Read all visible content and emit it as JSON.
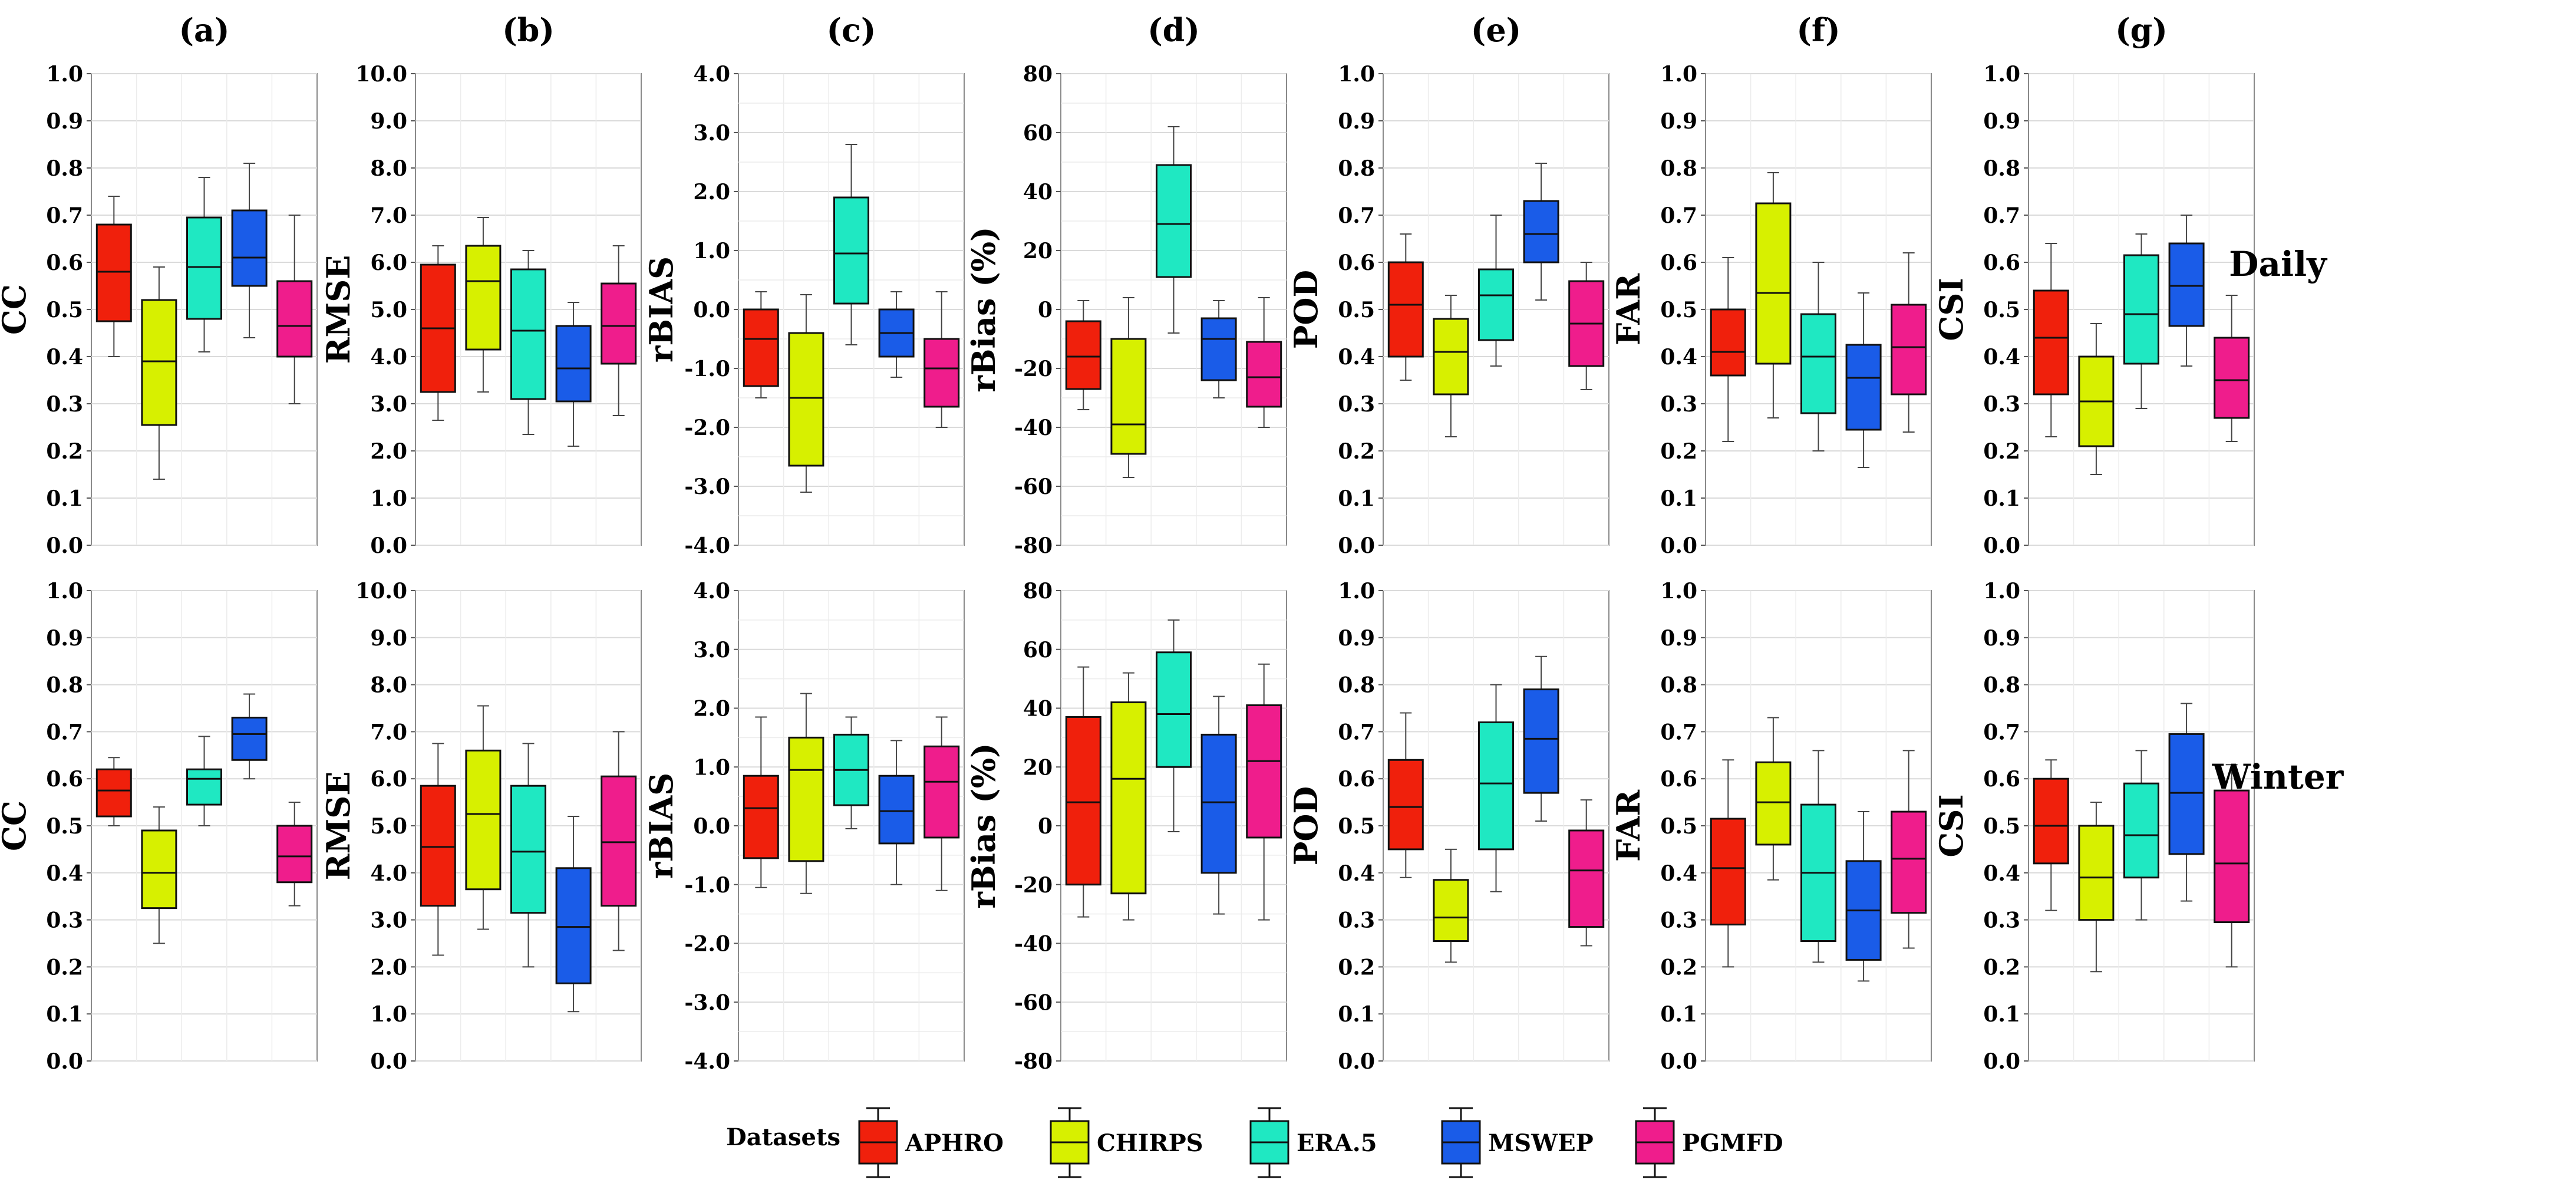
{
  "figure": {
    "row_labels": [
      "Daily",
      "Winter"
    ],
    "legend_title": "Datasets",
    "datasets": [
      "APHRO",
      "CHIRPS",
      "ERA.5",
      "MSWEP",
      "PGMFD"
    ],
    "colors": {
      "APHRO": "#f0200c",
      "CHIRPS": "#d7f000",
      "ERA.5": "#1fe8c2",
      "MSWEP": "#1a5ce8",
      "PGMFD": "#ef1d8c"
    }
  },
  "chart_data": [
    {
      "type": "box",
      "panel": "(a)",
      "row": "Daily",
      "ylabel": "CC",
      "ylim": [
        0,
        1
      ],
      "yticks": [
        "0.0",
        "0.1",
        "0.2",
        "0.3",
        "0.4",
        "0.5",
        "0.6",
        "0.7",
        "0.8",
        "0.9",
        "1.0"
      ],
      "boxes": [
        {
          "dataset": "APHRO",
          "min": 0.4,
          "q1": 0.475,
          "median": 0.58,
          "q3": 0.68,
          "max": 0.74
        },
        {
          "dataset": "CHIRPS",
          "min": 0.14,
          "q1": 0.255,
          "median": 0.39,
          "q3": 0.52,
          "max": 0.59
        },
        {
          "dataset": "ERA.5",
          "min": 0.41,
          "q1": 0.48,
          "median": 0.59,
          "q3": 0.695,
          "max": 0.78
        },
        {
          "dataset": "MSWEP",
          "min": 0.44,
          "q1": 0.55,
          "median": 0.61,
          "q3": 0.71,
          "max": 0.81
        },
        {
          "dataset": "PGMFD",
          "min": 0.3,
          "q1": 0.4,
          "median": 0.465,
          "q3": 0.56,
          "max": 0.7
        }
      ]
    },
    {
      "type": "box",
      "panel": "(b)",
      "row": "Daily",
      "ylabel": "RMSE",
      "ylim": [
        0,
        10
      ],
      "yticks": [
        "0.0",
        "1.0",
        "2.0",
        "3.0",
        "4.0",
        "5.0",
        "6.0",
        "7.0",
        "8.0",
        "9.0",
        "10.0"
      ],
      "boxes": [
        {
          "dataset": "APHRO",
          "min": 2.65,
          "q1": 3.25,
          "median": 4.6,
          "q3": 5.95,
          "max": 6.35
        },
        {
          "dataset": "CHIRPS",
          "min": 3.25,
          "q1": 4.15,
          "median": 5.6,
          "q3": 6.35,
          "max": 6.95
        },
        {
          "dataset": "ERA.5",
          "min": 2.35,
          "q1": 3.1,
          "median": 4.55,
          "q3": 5.85,
          "max": 6.25
        },
        {
          "dataset": "MSWEP",
          "min": 2.1,
          "q1": 3.05,
          "median": 3.75,
          "q3": 4.65,
          "max": 5.15
        },
        {
          "dataset": "PGMFD",
          "min": 2.75,
          "q1": 3.85,
          "median": 4.65,
          "q3": 5.55,
          "max": 6.35
        }
      ]
    },
    {
      "type": "box",
      "panel": "(c)",
      "row": "Daily",
      "ylabel": "rBIAS",
      "ylim": [
        -4,
        4
      ],
      "yticks": [
        "-4.0",
        "-3.0",
        "-2.0",
        "-1.0",
        "0.0",
        "1.0",
        "2.0",
        "3.0",
        "4.0"
      ],
      "boxes": [
        {
          "dataset": "APHRO",
          "min": -1.5,
          "q1": -1.3,
          "median": -0.5,
          "q3": 0.0,
          "max": 0.3
        },
        {
          "dataset": "CHIRPS",
          "min": -3.1,
          "q1": -2.65,
          "median": -1.5,
          "q3": -0.4,
          "max": 0.25
        },
        {
          "dataset": "ERA.5",
          "min": -0.6,
          "q1": 0.1,
          "median": 0.95,
          "q3": 1.9,
          "max": 2.8
        },
        {
          "dataset": "MSWEP",
          "min": -1.15,
          "q1": -0.8,
          "median": -0.4,
          "q3": 0.0,
          "max": 0.3
        },
        {
          "dataset": "PGMFD",
          "min": -2.0,
          "q1": -1.65,
          "median": -1.0,
          "q3": -0.5,
          "max": 0.3
        }
      ]
    },
    {
      "type": "box",
      "panel": "(d)",
      "row": "Daily",
      "ylabel": "rBias (%)",
      "ylim": [
        -80,
        80
      ],
      "yticks": [
        "-80",
        "-60",
        "-40",
        "-20",
        "0",
        "20",
        "40",
        "60",
        "80"
      ],
      "boxes": [
        {
          "dataset": "APHRO",
          "min": -34,
          "q1": -27,
          "median": -16,
          "q3": -4,
          "max": 3
        },
        {
          "dataset": "CHIRPS",
          "min": -57,
          "q1": -49,
          "median": -39,
          "q3": -10,
          "max": 4
        },
        {
          "dataset": "ERA.5",
          "min": -8,
          "q1": 11,
          "median": 29,
          "q3": 49,
          "max": 62
        },
        {
          "dataset": "MSWEP",
          "min": -30,
          "q1": -24,
          "median": -10,
          "q3": -3,
          "max": 3
        },
        {
          "dataset": "PGMFD",
          "min": -40,
          "q1": -33,
          "median": -23,
          "q3": -11,
          "max": 4
        }
      ]
    },
    {
      "type": "box",
      "panel": "(e)",
      "row": "Daily",
      "ylabel": "POD",
      "ylim": [
        0,
        1
      ],
      "yticks": [
        "0.0",
        "0.1",
        "0.2",
        "0.3",
        "0.4",
        "0.5",
        "0.6",
        "0.7",
        "0.8",
        "0.9",
        "1.0"
      ],
      "boxes": [
        {
          "dataset": "APHRO",
          "min": 0.35,
          "q1": 0.4,
          "median": 0.51,
          "q3": 0.6,
          "max": 0.66
        },
        {
          "dataset": "CHIRPS",
          "min": 0.23,
          "q1": 0.32,
          "median": 0.41,
          "q3": 0.48,
          "max": 0.53
        },
        {
          "dataset": "ERA.5",
          "min": 0.38,
          "q1": 0.435,
          "median": 0.53,
          "q3": 0.585,
          "max": 0.7
        },
        {
          "dataset": "MSWEP",
          "min": 0.52,
          "q1": 0.6,
          "median": 0.66,
          "q3": 0.73,
          "max": 0.81
        },
        {
          "dataset": "PGMFD",
          "min": 0.33,
          "q1": 0.38,
          "median": 0.47,
          "q3": 0.56,
          "max": 0.6
        }
      ]
    },
    {
      "type": "box",
      "panel": "(f)",
      "row": "Daily",
      "ylabel": "FAR",
      "ylim": [
        0,
        1
      ],
      "yticks": [
        "0.0",
        "0.1",
        "0.2",
        "0.3",
        "0.4",
        "0.5",
        "0.6",
        "0.7",
        "0.8",
        "0.9",
        "1.0"
      ],
      "boxes": [
        {
          "dataset": "APHRO",
          "min": 0.22,
          "q1": 0.36,
          "median": 0.41,
          "q3": 0.5,
          "max": 0.61
        },
        {
          "dataset": "CHIRPS",
          "min": 0.27,
          "q1": 0.385,
          "median": 0.535,
          "q3": 0.725,
          "max": 0.79
        },
        {
          "dataset": "ERA.5",
          "min": 0.2,
          "q1": 0.28,
          "median": 0.4,
          "q3": 0.49,
          "max": 0.6
        },
        {
          "dataset": "MSWEP",
          "min": 0.165,
          "q1": 0.245,
          "median": 0.355,
          "q3": 0.425,
          "max": 0.535
        },
        {
          "dataset": "PGMFD",
          "min": 0.24,
          "q1": 0.32,
          "median": 0.42,
          "q3": 0.51,
          "max": 0.62
        }
      ]
    },
    {
      "type": "box",
      "panel": "(g)",
      "row": "Daily",
      "ylabel": "CSI",
      "ylim": [
        0,
        1
      ],
      "yticks": [
        "0.0",
        "0.1",
        "0.2",
        "0.3",
        "0.4",
        "0.5",
        "0.6",
        "0.7",
        "0.8",
        "0.9",
        "1.0"
      ],
      "boxes": [
        {
          "dataset": "APHRO",
          "min": 0.23,
          "q1": 0.32,
          "median": 0.44,
          "q3": 0.54,
          "max": 0.64
        },
        {
          "dataset": "CHIRPS",
          "min": 0.15,
          "q1": 0.21,
          "median": 0.305,
          "q3": 0.4,
          "max": 0.47
        },
        {
          "dataset": "ERA.5",
          "min": 0.29,
          "q1": 0.385,
          "median": 0.49,
          "q3": 0.615,
          "max": 0.66
        },
        {
          "dataset": "MSWEP",
          "min": 0.38,
          "q1": 0.465,
          "median": 0.55,
          "q3": 0.64,
          "max": 0.7
        },
        {
          "dataset": "PGMFD",
          "min": 0.22,
          "q1": 0.27,
          "median": 0.35,
          "q3": 0.44,
          "max": 0.53
        }
      ]
    },
    {
      "type": "box",
      "panel": "(a)",
      "row": "Winter",
      "ylabel": "CC",
      "ylim": [
        0,
        1
      ],
      "yticks": [
        "0.0",
        "0.1",
        "0.2",
        "0.3",
        "0.4",
        "0.5",
        "0.6",
        "0.7",
        "0.8",
        "0.9",
        "1.0"
      ],
      "boxes": [
        {
          "dataset": "APHRO",
          "min": 0.5,
          "q1": 0.52,
          "median": 0.575,
          "q3": 0.62,
          "max": 0.645
        },
        {
          "dataset": "CHIRPS",
          "min": 0.25,
          "q1": 0.325,
          "median": 0.4,
          "q3": 0.49,
          "max": 0.54
        },
        {
          "dataset": "ERA.5",
          "min": 0.5,
          "q1": 0.545,
          "median": 0.6,
          "q3": 0.62,
          "max": 0.69
        },
        {
          "dataset": "MSWEP",
          "min": 0.6,
          "q1": 0.64,
          "median": 0.695,
          "q3": 0.73,
          "max": 0.78
        },
        {
          "dataset": "PGMFD",
          "min": 0.33,
          "q1": 0.38,
          "median": 0.435,
          "q3": 0.5,
          "max": 0.55
        }
      ]
    },
    {
      "type": "box",
      "panel": "(b)",
      "row": "Winter",
      "ylabel": "RMSE",
      "ylim": [
        0,
        10
      ],
      "yticks": [
        "0.0",
        "1.0",
        "2.0",
        "3.0",
        "4.0",
        "5.0",
        "6.0",
        "7.0",
        "8.0",
        "9.0",
        "10.0"
      ],
      "boxes": [
        {
          "dataset": "APHRO",
          "min": 2.25,
          "q1": 3.3,
          "median": 4.55,
          "q3": 5.85,
          "max": 6.75
        },
        {
          "dataset": "CHIRPS",
          "min": 2.8,
          "q1": 3.65,
          "median": 5.25,
          "q3": 6.6,
          "max": 7.55
        },
        {
          "dataset": "ERA.5",
          "min": 2.0,
          "q1": 3.15,
          "median": 4.45,
          "q3": 5.85,
          "max": 6.75
        },
        {
          "dataset": "MSWEP",
          "min": 1.05,
          "q1": 1.65,
          "median": 2.85,
          "q3": 4.1,
          "max": 5.2
        },
        {
          "dataset": "PGMFD",
          "min": 2.35,
          "q1": 3.3,
          "median": 4.65,
          "q3": 6.05,
          "max": 7.0
        }
      ]
    },
    {
      "type": "box",
      "panel": "(c)",
      "row": "Winter",
      "ylabel": "rBIAS",
      "ylim": [
        -4,
        4
      ],
      "yticks": [
        "-4.0",
        "-3.0",
        "-2.0",
        "-1.0",
        "0.0",
        "1.0",
        "2.0",
        "3.0",
        "4.0"
      ],
      "boxes": [
        {
          "dataset": "APHRO",
          "min": -1.05,
          "q1": -0.55,
          "median": 0.3,
          "q3": 0.85,
          "max": 1.85
        },
        {
          "dataset": "CHIRPS",
          "min": -1.15,
          "q1": -0.6,
          "median": 0.95,
          "q3": 1.5,
          "max": 2.25
        },
        {
          "dataset": "ERA.5",
          "min": -0.05,
          "q1": 0.35,
          "median": 0.95,
          "q3": 1.55,
          "max": 1.85
        },
        {
          "dataset": "MSWEP",
          "min": -1.0,
          "q1": -0.3,
          "median": 0.25,
          "q3": 0.85,
          "max": 1.45
        },
        {
          "dataset": "PGMFD",
          "min": -1.1,
          "q1": -0.2,
          "median": 0.75,
          "q3": 1.35,
          "max": 1.85
        }
      ]
    },
    {
      "type": "box",
      "panel": "(d)",
      "row": "Winter",
      "ylabel": "rBias (%)",
      "ylim": [
        -80,
        80
      ],
      "yticks": [
        "-80",
        "-60",
        "-40",
        "-20",
        "0",
        "20",
        "40",
        "60",
        "80"
      ],
      "boxes": [
        {
          "dataset": "APHRO",
          "min": -31,
          "q1": -20,
          "median": 8,
          "q3": 37,
          "max": 54
        },
        {
          "dataset": "CHIRPS",
          "min": -32,
          "q1": -23,
          "median": 16,
          "q3": 42,
          "max": 52
        },
        {
          "dataset": "ERA.5",
          "min": -2,
          "q1": 20,
          "median": 38,
          "q3": 59,
          "max": 70
        },
        {
          "dataset": "MSWEP",
          "min": -30,
          "q1": -16,
          "median": 8,
          "q3": 31,
          "max": 44
        },
        {
          "dataset": "PGMFD",
          "min": -32,
          "q1": -4,
          "median": 22,
          "q3": 41,
          "max": 55
        }
      ]
    },
    {
      "type": "box",
      "panel": "(e)",
      "row": "Winter",
      "ylabel": "POD",
      "ylim": [
        0,
        1
      ],
      "yticks": [
        "0.0",
        "0.1",
        "0.2",
        "0.3",
        "0.4",
        "0.5",
        "0.6",
        "0.7",
        "0.8",
        "0.9",
        "1.0"
      ],
      "boxes": [
        {
          "dataset": "APHRO",
          "min": 0.39,
          "q1": 0.45,
          "median": 0.54,
          "q3": 0.64,
          "max": 0.74
        },
        {
          "dataset": "CHIRPS",
          "min": 0.21,
          "q1": 0.255,
          "median": 0.305,
          "q3": 0.385,
          "max": 0.45
        },
        {
          "dataset": "ERA.5",
          "min": 0.36,
          "q1": 0.45,
          "median": 0.59,
          "q3": 0.72,
          "max": 0.8
        },
        {
          "dataset": "MSWEP",
          "min": 0.51,
          "q1": 0.57,
          "median": 0.685,
          "q3": 0.79,
          "max": 0.86
        },
        {
          "dataset": "PGMFD",
          "min": 0.245,
          "q1": 0.285,
          "median": 0.405,
          "q3": 0.49,
          "max": 0.555
        }
      ]
    },
    {
      "type": "box",
      "panel": "(f)",
      "row": "Winter",
      "ylabel": "FAR",
      "ylim": [
        0,
        1
      ],
      "yticks": [
        "0.0",
        "0.1",
        "0.2",
        "0.3",
        "0.4",
        "0.5",
        "0.6",
        "0.7",
        "0.8",
        "0.9",
        "1.0"
      ],
      "boxes": [
        {
          "dataset": "APHRO",
          "min": 0.2,
          "q1": 0.29,
          "median": 0.41,
          "q3": 0.515,
          "max": 0.64
        },
        {
          "dataset": "CHIRPS",
          "min": 0.385,
          "q1": 0.46,
          "median": 0.55,
          "q3": 0.635,
          "max": 0.73
        },
        {
          "dataset": "ERA.5",
          "min": 0.21,
          "q1": 0.255,
          "median": 0.4,
          "q3": 0.545,
          "max": 0.66
        },
        {
          "dataset": "MSWEP",
          "min": 0.17,
          "q1": 0.215,
          "median": 0.32,
          "q3": 0.425,
          "max": 0.53
        },
        {
          "dataset": "PGMFD",
          "min": 0.24,
          "q1": 0.315,
          "median": 0.43,
          "q3": 0.53,
          "max": 0.66
        }
      ]
    },
    {
      "type": "box",
      "panel": "(g)",
      "row": "Winter",
      "ylabel": "CSI",
      "ylim": [
        0,
        1
      ],
      "yticks": [
        "0.0",
        "0.1",
        "0.2",
        "0.3",
        "0.4",
        "0.5",
        "0.6",
        "0.7",
        "0.8",
        "0.9",
        "1.0"
      ],
      "boxes": [
        {
          "dataset": "APHRO",
          "min": 0.32,
          "q1": 0.42,
          "median": 0.5,
          "q3": 0.6,
          "max": 0.64
        },
        {
          "dataset": "CHIRPS",
          "min": 0.19,
          "q1": 0.3,
          "median": 0.39,
          "q3": 0.5,
          "max": 0.55
        },
        {
          "dataset": "ERA.5",
          "min": 0.3,
          "q1": 0.39,
          "median": 0.48,
          "q3": 0.59,
          "max": 0.66
        },
        {
          "dataset": "MSWEP",
          "min": 0.34,
          "q1": 0.44,
          "median": 0.57,
          "q3": 0.695,
          "max": 0.76
        },
        {
          "dataset": "PGMFD",
          "min": 0.2,
          "q1": 0.295,
          "median": 0.42,
          "q3": 0.575,
          "max": 0.63
        }
      ]
    }
  ]
}
